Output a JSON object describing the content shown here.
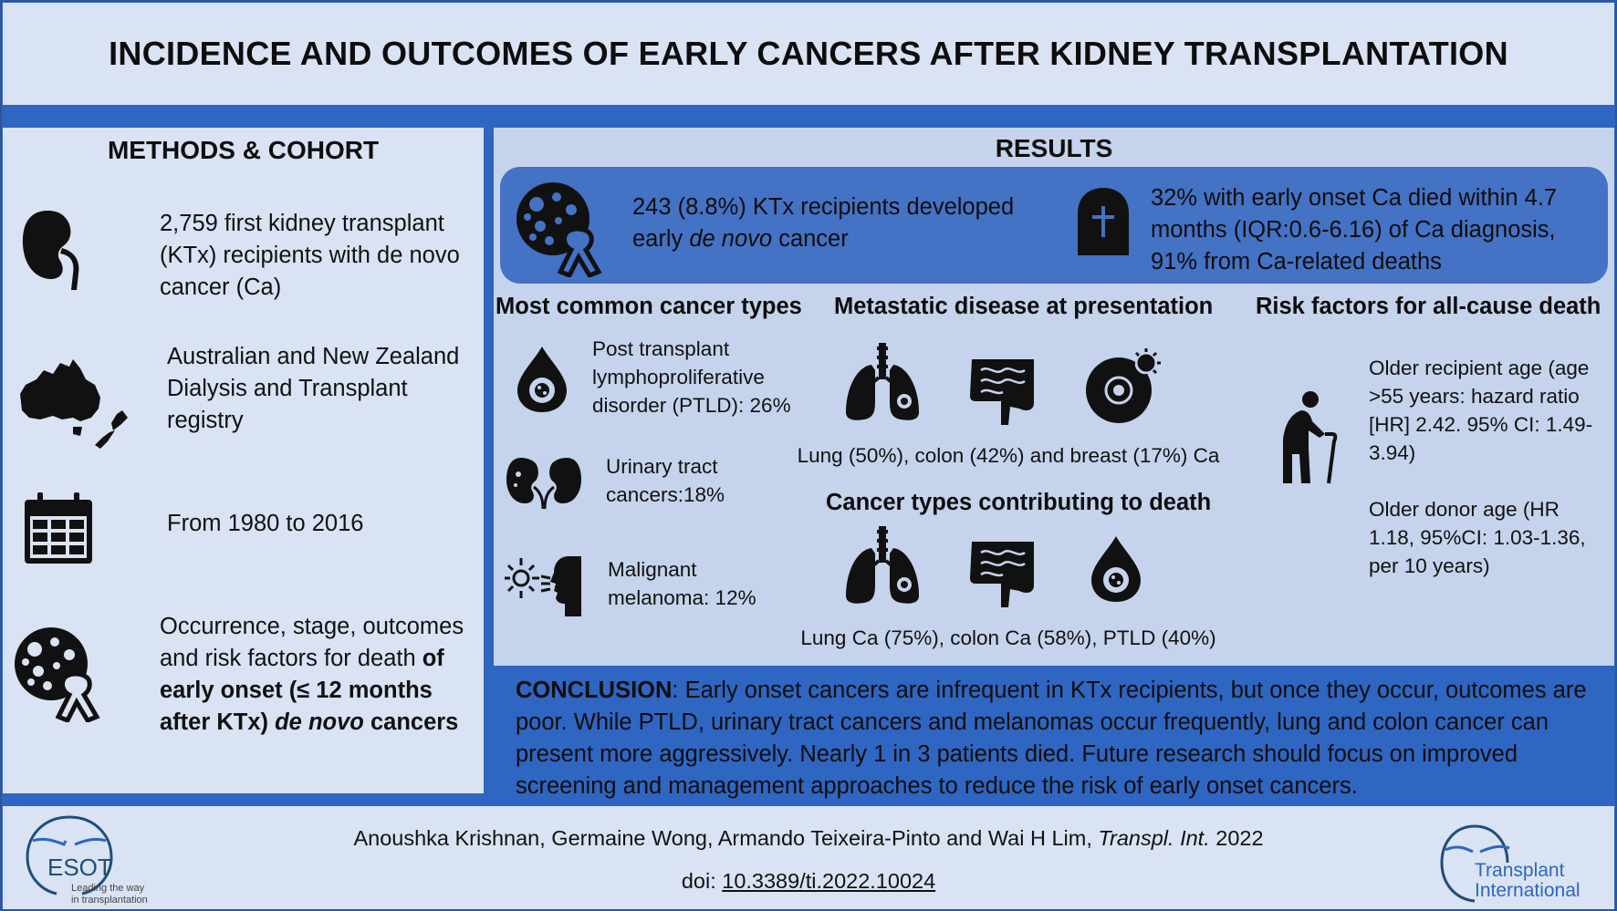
{
  "title": "INCIDENCE AND OUTCOMES OF EARLY CANCERS AFTER KIDNEY TRANSPLANTATION",
  "methods": {
    "heading": "METHODS & COHORT",
    "cohort": "2,759 first kidney transplant (KTx) recipients with de novo cancer (Ca)",
    "registry": "Australian and New Zealand Dialysis and Transplant registry",
    "period": "From 1980 to 2016",
    "outcomes_prefix": "Occurrence, stage, outcomes and risk factors for death ",
    "outcomes_bold": "of early onset (≤ 12 months after KTx) ",
    "outcomes_italic": "de novo",
    "outcomes_suffix": " cancers"
  },
  "results": {
    "heading": "RESULTS",
    "incidence_prefix": "243 (8.8%) KTx recipients developed early ",
    "incidence_italic": "de novo",
    "incidence_suffix": " cancer",
    "mortality": "32% with early onset Ca died within 4.7 months (IQR:0.6-6.16) of Ca diagnosis, 91% from Ca-related deaths",
    "common_types": {
      "heading": "Most common cancer types",
      "ptld": "Post transplant lymphoproliferative disorder (PTLD): 26%",
      "urinary": "Urinary tract cancers:18%",
      "melanoma": "Malignant melanoma: 12%"
    },
    "metastatic": {
      "heading": "Metastatic disease at presentation",
      "caption": "Lung (50%), colon (42%) and breast (17%) Ca"
    },
    "death_types": {
      "heading": "Cancer types contributing to death",
      "caption": "Lung Ca (75%), colon Ca (58%), PTLD (40%)"
    },
    "risk": {
      "heading": "Risk factors for all-cause death",
      "recipient_age": "Older recipient age (age >55 years: hazard ratio [HR] 2.42. 95% CI: 1.49-3.94)",
      "donor_age": "Older donor age (HR 1.18, 95%CI: 1.03-1.36, per 10 years)"
    }
  },
  "conclusion": {
    "label": "CONCLUSION",
    "text": ": Early onset cancers are infrequent in KTx recipients, but once they occur, outcomes are poor. While PTLD, urinary tract cancers and melanomas occur frequently, lung and colon cancer can present more aggressively. Nearly 1 in 3 patients died. Future research should focus on improved screening and management approaches to reduce the risk of early onset cancers."
  },
  "footer": {
    "authors": "Anoushka Krishnan, Germaine Wong, Armando Teixeira-Pinto and Wai H Lim, ",
    "journal": "Transpl. Int.",
    "year": " 2022",
    "doi_label": "doi: ",
    "doi": "10.3389/ti.2022.10024",
    "esot_name": "ESOT",
    "esot_tagline_1": "Leading the way",
    "esot_tagline_2": "in transplantation",
    "ti_line1": "Transplant",
    "ti_line2": "International"
  },
  "colors": {
    "dark_blue": "#2e66c1",
    "light_blue": "#dae3f3",
    "mid_blue": "#c5d4ec",
    "banner": "#4472c4"
  }
}
